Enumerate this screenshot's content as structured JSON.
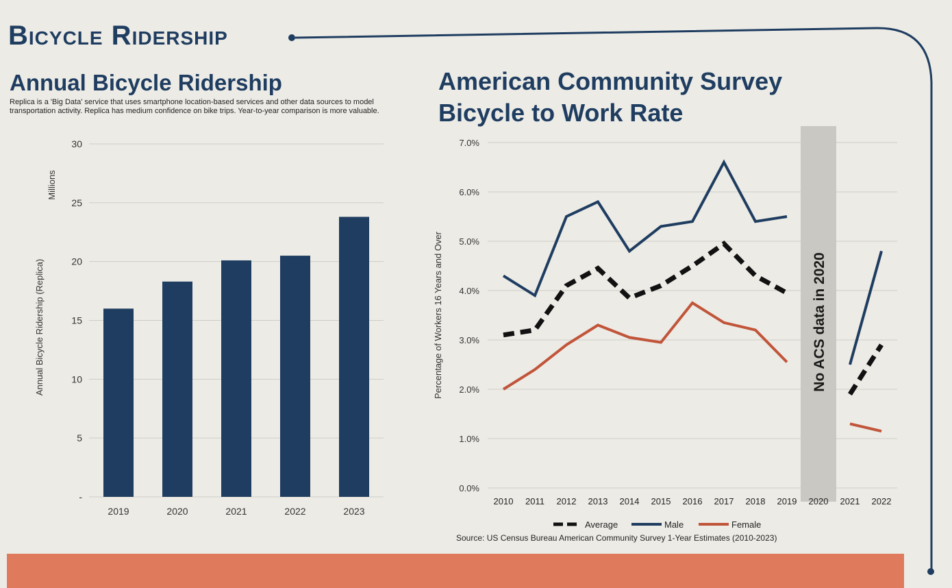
{
  "page": {
    "title": "Bicycle Ridership",
    "colors": {
      "navy": "#1f3d60",
      "orange": "#c1553a",
      "black": "#111111",
      "gray_band": "#c9c8c3"
    }
  },
  "left": {
    "title": "Annual Bicycle Ridership",
    "description": "Replica is a 'Big Data' service that uses smartphone location-based services and other data sources to model transportation activity. Replica has medium confidence on bike trips. Year-to-year comparison is more valuable."
  },
  "right": {
    "title_line1": "American Community Survey",
    "title_line2": "Bicycle to Work Rate",
    "source": "Source: US Census Bureau American Community Survey 1-Year Estimates (2010-2023)"
  },
  "chart_data": [
    {
      "type": "bar",
      "title": "Annual Bicycle Ridership",
      "categories": [
        "2019",
        "2020",
        "2021",
        "2022",
        "2023"
      ],
      "values": [
        16,
        18.3,
        20.1,
        20.5,
        23.8
      ],
      "ylabel": "Annual Bicycle Ridership (Replica)",
      "yunit": "Millions",
      "ylim": [
        0,
        30
      ],
      "yticks": [
        "-",
        "5",
        "10",
        "15",
        "20",
        "25",
        "30"
      ],
      "grid": true
    },
    {
      "type": "line",
      "title": "American Community Survey Bicycle to Work Rate",
      "x": [
        "2010",
        "2011",
        "2012",
        "2013",
        "2014",
        "2015",
        "2016",
        "2017",
        "2018",
        "2019",
        "2020",
        "2021",
        "2022"
      ],
      "series": [
        {
          "name": "Male",
          "values": [
            4.3,
            3.9,
            5.5,
            5.8,
            4.8,
            5.3,
            5.4,
            6.6,
            5.4,
            5.5,
            null,
            2.5,
            4.8
          ]
        },
        {
          "name": "Average",
          "values": [
            3.1,
            3.2,
            4.1,
            4.45,
            3.85,
            4.1,
            4.5,
            4.95,
            4.3,
            3.95,
            null,
            1.9,
            2.9
          ]
        },
        {
          "name": "Female",
          "values": [
            2.0,
            2.4,
            2.9,
            3.3,
            3.05,
            2.95,
            3.75,
            3.35,
            3.2,
            2.55,
            null,
            1.3,
            1.15
          ]
        }
      ],
      "legend": [
        "Average",
        "Male",
        "Female"
      ],
      "legend_position": "bottom",
      "ylabel": "Percentage of Workers 16 Years and Over",
      "ylim": [
        0,
        7
      ],
      "yticks": [
        "0.0%",
        "1.0%",
        "2.0%",
        "3.0%",
        "4.0%",
        "5.0%",
        "6.0%",
        "7.0%"
      ],
      "annotation": "No ACS data in 2020",
      "grid": true
    }
  ]
}
